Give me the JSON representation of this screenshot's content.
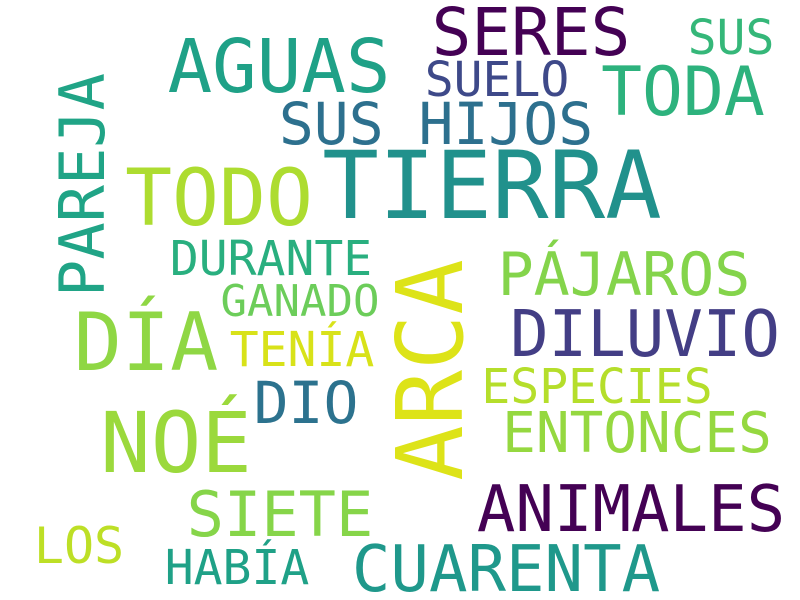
{
  "words": [
    {
      "text": "TIERRA",
      "color": "#21918c"
    },
    {
      "text": "ARCA",
      "color": "#dde318"
    },
    {
      "text": "NOÉ",
      "color": "#9bd93c"
    },
    {
      "text": "DÍA",
      "color": "#8fd744"
    },
    {
      "text": "TODO",
      "color": "#addc30"
    },
    {
      "text": "AGUAS",
      "color": "#1fa187"
    },
    {
      "text": "SERES",
      "color": "#440154"
    },
    {
      "text": "TODA",
      "color": "#2db27d"
    },
    {
      "text": "DILUVIO",
      "color": "#433e85"
    },
    {
      "text": "ANIMALES",
      "color": "#440154"
    },
    {
      "text": "CUARENTA",
      "color": "#1f988b"
    },
    {
      "text": "PAREJA",
      "color": "#20a486"
    },
    {
      "text": "PÁJAROS",
      "color": "#84d44b"
    },
    {
      "text": "SUS HIJOS",
      "color": "#2d708e"
    },
    {
      "text": "ENTONCES",
      "color": "#95d840"
    },
    {
      "text": "SIETE",
      "color": "#86d549"
    },
    {
      "text": "ESPECIES",
      "color": "#b5de2b"
    },
    {
      "text": "DURANTE",
      "color": "#29af7f"
    },
    {
      "text": "SUELO",
      "color": "#3e4989"
    },
    {
      "text": "DIO",
      "color": "#2c728e"
    },
    {
      "text": "GANADO",
      "color": "#6ccd5a"
    },
    {
      "text": "TENÍA",
      "color": "#d8e219"
    },
    {
      "text": "SUS",
      "color": "#35b779"
    },
    {
      "text": "HABÍA",
      "color": "#1fa187"
    },
    {
      "text": "LOS",
      "color": "#bddf26"
    }
  ]
}
